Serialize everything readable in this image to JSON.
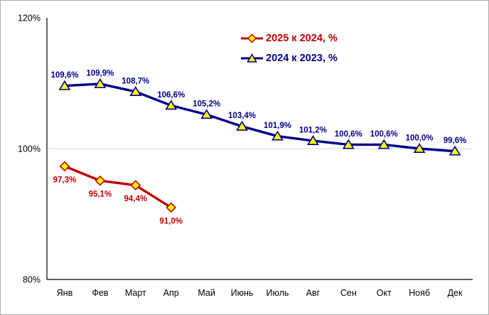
{
  "figure": {
    "background": "#FFFFFF",
    "border_color": "#ABABAB"
  },
  "chart_data": {
    "type": "line",
    "title": "",
    "categories": [
      "Янв",
      "Фев",
      "Март",
      "Апр",
      "Май",
      "Июнь",
      "Июль",
      "Авг",
      "Сен",
      "Окт",
      "Нояб",
      "Дек"
    ],
    "series": [
      {
        "name": "2025 к 2024, %",
        "color": "#C00000",
        "marker": "diamond",
        "marker_fill": "#FFFF00",
        "label_position": "below",
        "values": [
          97.3,
          95.1,
          94.4,
          91.0,
          null,
          null,
          null,
          null,
          null,
          null,
          null,
          null
        ],
        "labels": [
          "97,3%",
          "95,1%",
          "94,4%",
          "91,0%",
          "",
          "",
          "",
          "",
          "",
          "",
          "",
          ""
        ]
      },
      {
        "name": "2024 к 2023, %",
        "color": "#00008B",
        "marker": "triangle",
        "marker_fill": "#FFFF00",
        "label_position": "above",
        "values": [
          109.6,
          109.9,
          108.7,
          106.6,
          105.2,
          103.4,
          101.9,
          101.2,
          100.6,
          100.6,
          100.0,
          99.6
        ],
        "labels": [
          "109,6%",
          "109,9%",
          "108,7%",
          "106,6%",
          "105,2%",
          "103,4%",
          "101,9%",
          "101,2%",
          "100,6%",
          "100,6%",
          "100,0%",
          "99,6%"
        ]
      }
    ],
    "y_axis": {
      "range": [
        80,
        120
      ],
      "ticks": [
        {
          "value": 80,
          "label": "80%"
        },
        {
          "value": 100,
          "label": "100%"
        },
        {
          "value": 120,
          "label": "120%"
        }
      ],
      "gridlines": [
        100
      ],
      "gridline_color": "#D9D9D9"
    },
    "x_axis": {
      "label": "",
      "tick_labels_visible": true
    },
    "legend_position": "inside-top-center",
    "grid": "single horizontal gridline at 100%"
  }
}
